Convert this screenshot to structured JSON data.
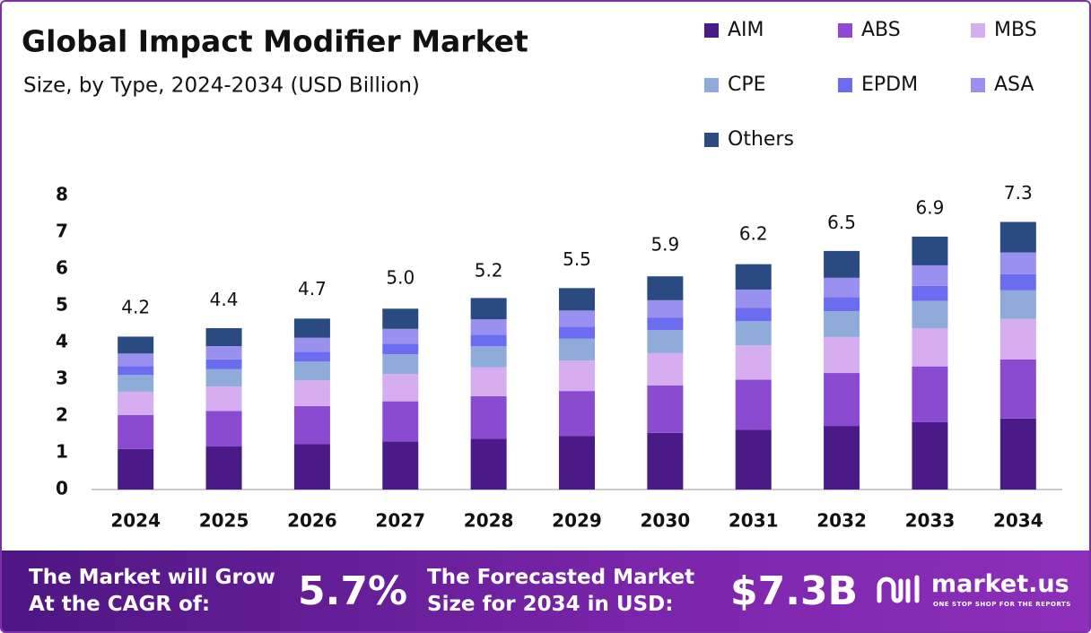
{
  "chart_data": {
    "type": "stacked-bar",
    "title": "Global Impact Modifier Market",
    "subtitle": "Size, by Type, 2024-2034 (USD Billion)",
    "categories": [
      "2024",
      "2025",
      "2026",
      "2027",
      "2028",
      "2029",
      "2030",
      "2031",
      "2032",
      "2033",
      "2034"
    ],
    "series": [
      {
        "name": "AIM",
        "color": "#4a1a86",
        "values": [
          1.1,
          1.17,
          1.24,
          1.31,
          1.38,
          1.46,
          1.54,
          1.63,
          1.73,
          1.83,
          1.93
        ]
      },
      {
        "name": "ABS",
        "color": "#8a4bd0",
        "values": [
          0.93,
          0.97,
          1.03,
          1.09,
          1.16,
          1.22,
          1.29,
          1.36,
          1.44,
          1.52,
          1.61
        ]
      },
      {
        "name": "MBS",
        "color": "#d6aef0",
        "values": [
          0.63,
          0.66,
          0.7,
          0.74,
          0.79,
          0.83,
          0.88,
          0.93,
          0.98,
          1.04,
          1.1
        ]
      },
      {
        "name": "CPE",
        "color": "#8fabd9",
        "values": [
          0.46,
          0.48,
          0.51,
          0.54,
          0.57,
          0.6,
          0.63,
          0.66,
          0.7,
          0.74,
          0.78
        ]
      },
      {
        "name": "EPDM",
        "color": "#6b6cf0",
        "values": [
          0.24,
          0.26,
          0.27,
          0.29,
          0.31,
          0.32,
          0.34,
          0.36,
          0.38,
          0.41,
          0.44
        ]
      },
      {
        "name": "ASA",
        "color": "#9a90f0",
        "values": [
          0.34,
          0.36,
          0.38,
          0.4,
          0.42,
          0.44,
          0.47,
          0.5,
          0.53,
          0.56,
          0.59
        ]
      },
      {
        "name": "Others",
        "color": "#2a4a82",
        "values": [
          0.46,
          0.49,
          0.52,
          0.55,
          0.58,
          0.61,
          0.65,
          0.69,
          0.73,
          0.78,
          0.83
        ]
      }
    ],
    "totals": {
      "values": [
        4.2,
        4.4,
        4.7,
        5.0,
        5.2,
        5.5,
        5.9,
        6.2,
        6.5,
        6.9,
        7.3
      ],
      "value_labels": [
        "4.2",
        "4.4",
        "4.7",
        "5.0",
        "5.2",
        "5.5",
        "5.9",
        "6.2",
        "6.5",
        "6.9",
        "7.3"
      ]
    },
    "ylim": [
      0,
      8
    ],
    "yticks": [
      0,
      1,
      2,
      3,
      4,
      5,
      6,
      7,
      8
    ],
    "grid": false
  },
  "footer": {
    "cagr_text": [
      "The Market will Grow",
      "At the CAGR of:"
    ],
    "cagr_value": "5.7%",
    "forecast_text": [
      "The Forecasted Market",
      "Size for 2034 in USD:"
    ],
    "forecast_value": "$7.3B",
    "brand": "market.us",
    "tagline": "ONE STOP SHOP FOR THE REPORTS"
  }
}
